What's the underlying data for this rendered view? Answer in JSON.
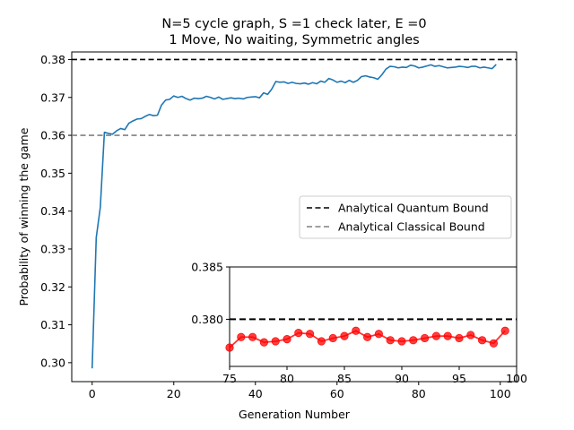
{
  "chart_data": [
    {
      "type": "line",
      "title_line1": "N=5 cycle graph, S =1 check later, E =0",
      "title_line2": "1 Move, No waiting, Symmetric angles",
      "xlabel": "Generation Number",
      "ylabel": "Probability of winning the game",
      "xlim": [
        -5,
        104
      ],
      "ylim": [
        0.295,
        0.382
      ],
      "xticks": [
        0,
        20,
        40,
        60,
        80,
        100
      ],
      "yticks": [
        "0.30",
        "0.31",
        "0.32",
        "0.33",
        "0.34",
        "0.35",
        "0.36",
        "0.37",
        "0.38"
      ],
      "grid": false,
      "legend_position": "center-right",
      "series": [
        {
          "color": "#1f77b4",
          "x": [
            0,
            1,
            2,
            3,
            4,
            5,
            6,
            7,
            8,
            9,
            10,
            11,
            12,
            13,
            14,
            15,
            16,
            17,
            18,
            19,
            20,
            21,
            22,
            23,
            24,
            25,
            26,
            27,
            28,
            29,
            30,
            31,
            32,
            33,
            34,
            35,
            36,
            37,
            38,
            39,
            40,
            41,
            42,
            43,
            44,
            45,
            46,
            47,
            48,
            49,
            50,
            51,
            52,
            53,
            54,
            55,
            56,
            57,
            58,
            59,
            60,
            61,
            62,
            63,
            64,
            65,
            66,
            67,
            68,
            69,
            70,
            71,
            72,
            73,
            74,
            75,
            76,
            77,
            78,
            79,
            80,
            81,
            82,
            83,
            84,
            85,
            86,
            87,
            88,
            89,
            90,
            91,
            92,
            93,
            94,
            95,
            96,
            97,
            98,
            99
          ],
          "y": [
            0.2985,
            0.333,
            0.341,
            0.3608,
            0.3605,
            0.3603,
            0.3612,
            0.3618,
            0.3615,
            0.3632,
            0.3638,
            0.3643,
            0.3644,
            0.365,
            0.3655,
            0.3652,
            0.3653,
            0.368,
            0.3693,
            0.3695,
            0.3704,
            0.37,
            0.3703,
            0.3697,
            0.3693,
            0.3698,
            0.3697,
            0.3698,
            0.3703,
            0.37,
            0.3696,
            0.3701,
            0.3695,
            0.3697,
            0.3699,
            0.3697,
            0.3698,
            0.3696,
            0.37,
            0.3701,
            0.3702,
            0.3699,
            0.3712,
            0.3708,
            0.3722,
            0.3742,
            0.374,
            0.3741,
            0.3737,
            0.374,
            0.3737,
            0.3736,
            0.3738,
            0.3735,
            0.3739,
            0.3736,
            0.3743,
            0.374,
            0.375,
            0.3746,
            0.374,
            0.3743,
            0.3739,
            0.3745,
            0.374,
            0.3745,
            0.3755,
            0.3757,
            0.3754,
            0.3752,
            0.3748,
            0.376,
            0.3775,
            0.3782,
            0.3781,
            0.3778,
            0.378,
            0.3779,
            0.3785,
            0.3783,
            0.3778,
            0.378,
            0.3783,
            0.3786,
            0.3782,
            0.3784,
            0.3781,
            0.3778,
            0.3779,
            0.378,
            0.3782,
            0.3781,
            0.3779,
            0.3782,
            0.3782,
            0.3778,
            0.378,
            0.3778,
            0.3776,
            0.3787
          ]
        }
      ],
      "reference_lines": [
        {
          "name": "Analytical Quantum Bound",
          "y": 0.38,
          "color": "#000000",
          "style": "dashed"
        },
        {
          "name": "Analytical Classical Bound",
          "y": 0.36,
          "color": "#808080",
          "style": "dashed"
        }
      ]
    },
    {
      "type": "line",
      "position": "inset-lower-right",
      "xlim": [
        75,
        100
      ],
      "ylim": [
        0.3755,
        0.385
      ],
      "xtick_labels": [
        "75",
        "80",
        "85",
        "90",
        "95",
        "100"
      ],
      "xtick_values": [
        75,
        80,
        85,
        90,
        95,
        100
      ],
      "ytick_labels": [
        "0.380",
        "0.385"
      ],
      "ytick_values": [
        0.38,
        0.385
      ],
      "series": [
        {
          "color": "#ff0000",
          "marker": "circle",
          "x": [
            75,
            76,
            77,
            78,
            79,
            80,
            81,
            82,
            83,
            84,
            85,
            86,
            87,
            88,
            89,
            90,
            91,
            92,
            93,
            94,
            95,
            96,
            97,
            98,
            99
          ],
          "y": [
            0.3773,
            0.3783,
            0.3783,
            0.3778,
            0.3779,
            0.3781,
            0.3787,
            0.3786,
            0.3779,
            0.3782,
            0.3784,
            0.3789,
            0.3783,
            0.3786,
            0.378,
            0.3779,
            0.378,
            0.3782,
            0.3784,
            0.3784,
            0.3782,
            0.3785,
            0.378,
            0.3777,
            0.3789
          ]
        }
      ],
      "reference_lines": [
        {
          "y": 0.38,
          "color": "#000000",
          "style": "dashed"
        }
      ]
    }
  ]
}
